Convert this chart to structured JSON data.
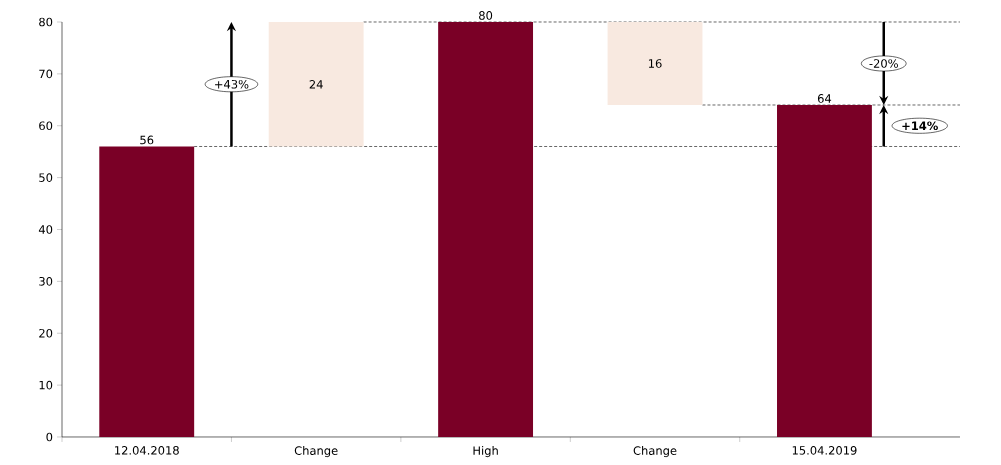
{
  "chart_data": {
    "type": "bar",
    "categories": [
      "12.04.2018",
      "Change",
      "High",
      "Change",
      "15.04.2019"
    ],
    "values": [
      56,
      24,
      80,
      16,
      64
    ],
    "base": [
      0,
      56,
      0,
      64,
      0
    ],
    "colors": [
      "#7a0026",
      "#f8e9e0",
      "#7a0026",
      "#f8e9e0",
      "#7a0026"
    ],
    "ylim": [
      0,
      80
    ],
    "yticks": [
      0,
      10,
      20,
      30,
      40,
      50,
      60,
      70,
      80
    ],
    "data_labels": true,
    "grid": false,
    "ref_lines": [
      {
        "axis": "y",
        "value": 56,
        "line_style": "dashed"
      },
      {
        "axis": "y",
        "value": 80,
        "line_style": "dashed"
      },
      {
        "axis": "y",
        "value": 64,
        "line_style": "dashed"
      }
    ],
    "annotations": [
      "+43%",
      "-20%",
      "+14%"
    ]
  }
}
